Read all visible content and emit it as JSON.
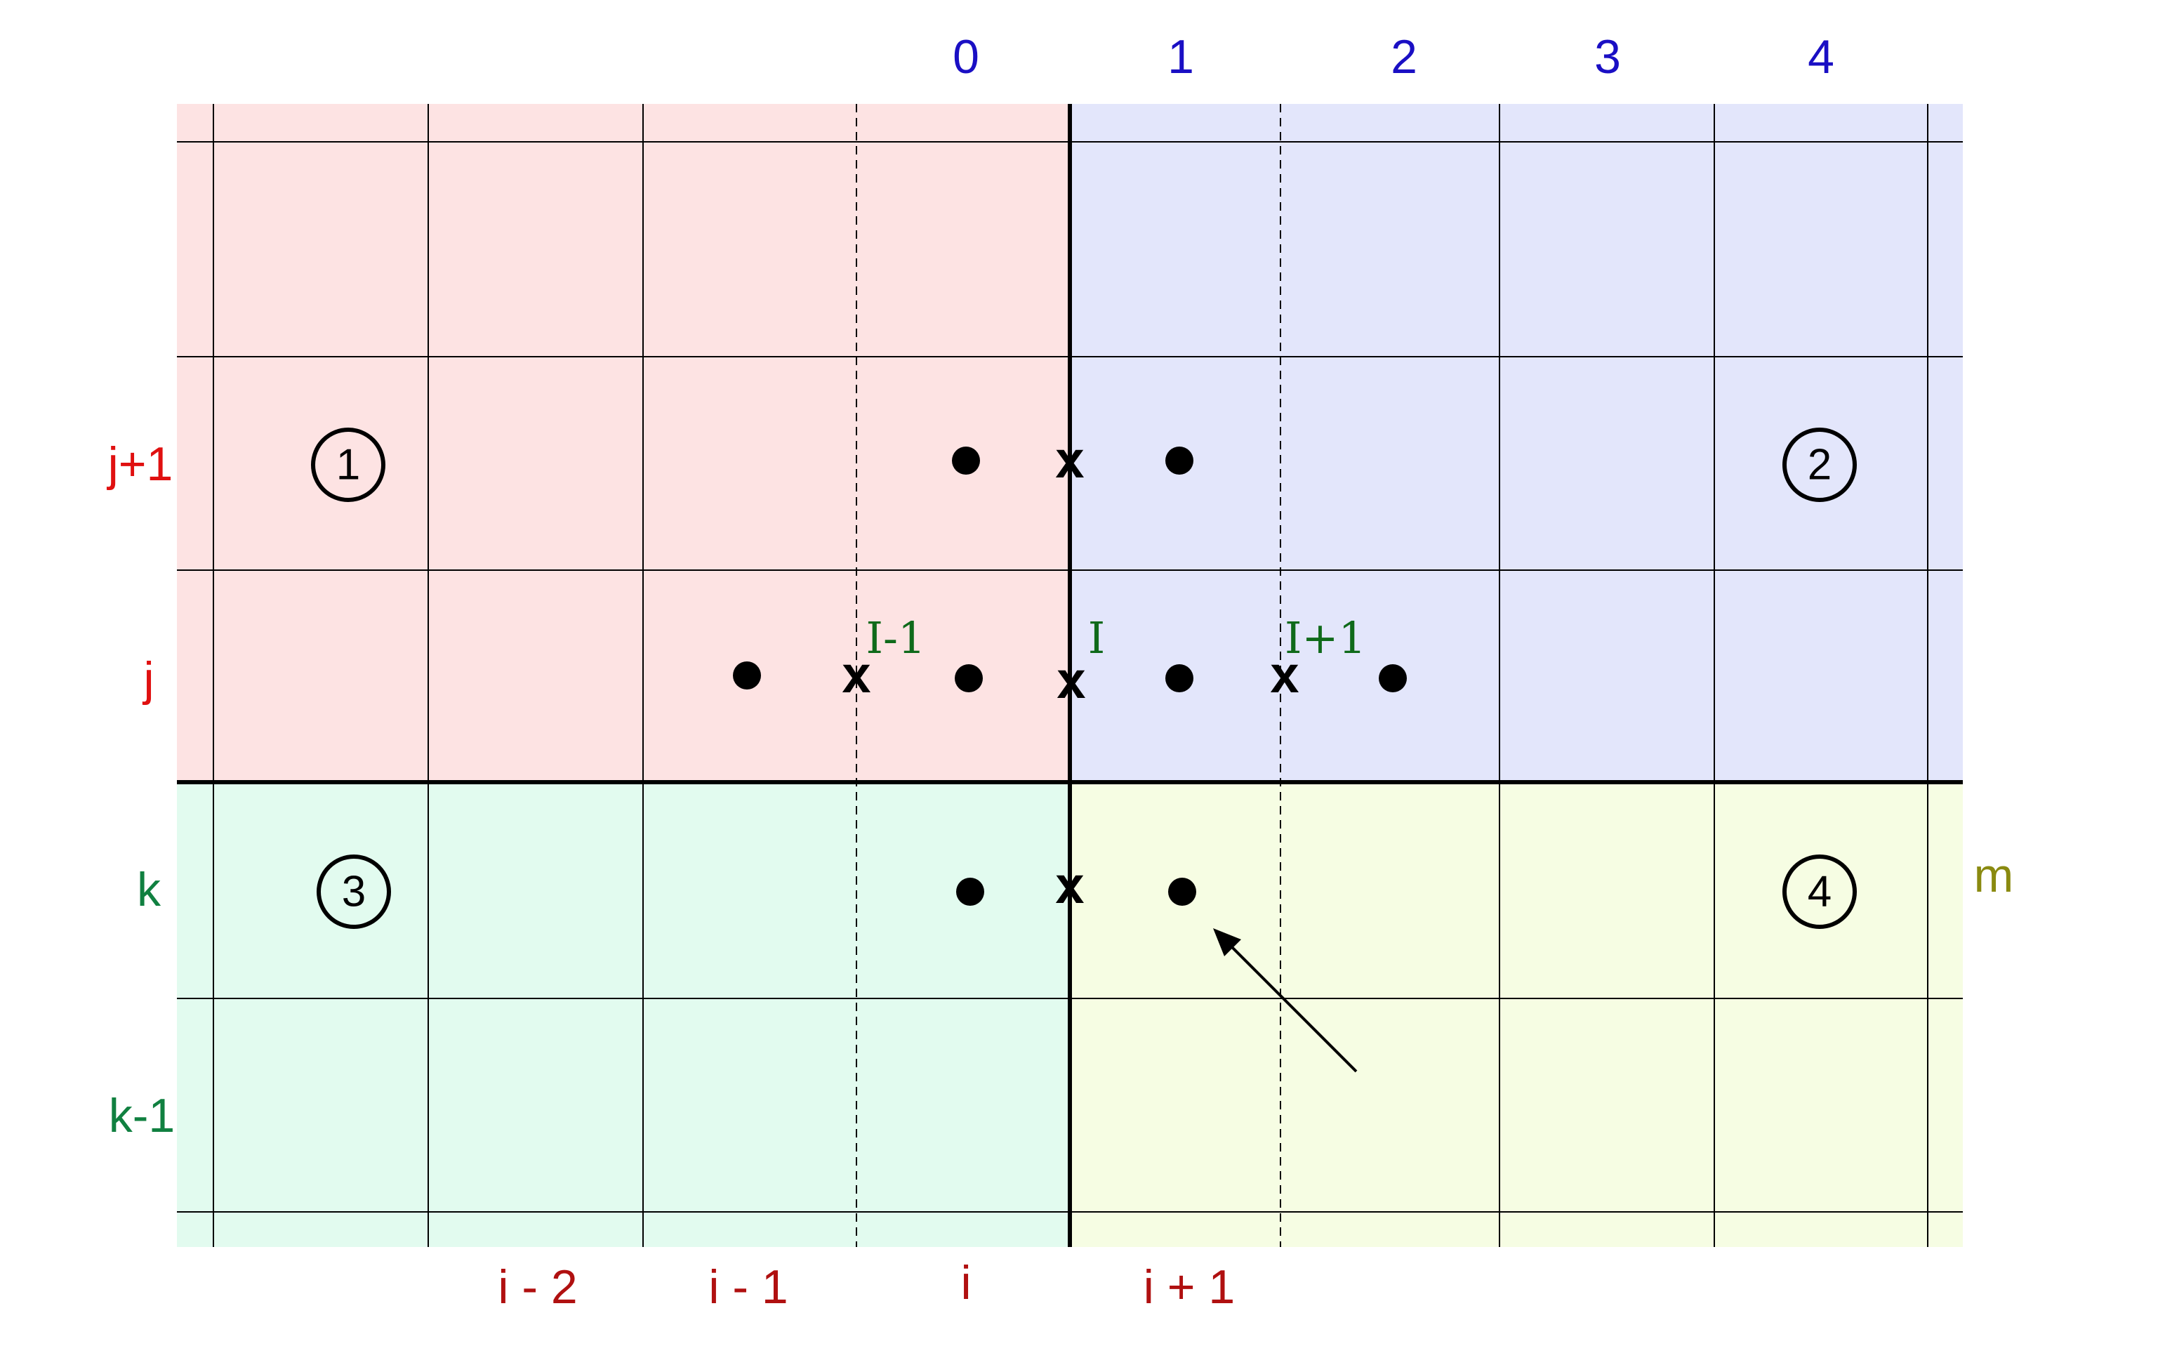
{
  "colors": {
    "region_1": "#fde3e3",
    "region_2": "#e3e6fb",
    "region_3": "#e2fbef",
    "region_4": "#f6fde3",
    "column_numbers": "#1a0fc4",
    "row_label_j": "#e01010",
    "row_label_k": "#108040",
    "bottom_labels": "#b01010",
    "interface_labels": "#0f6a1a",
    "m_label": "#8a8a10",
    "grid": "#000000"
  },
  "top_column_labels": [
    "0",
    "1",
    "2",
    "3",
    "4"
  ],
  "left_row_labels": [
    {
      "text": "j+1",
      "group": "j"
    },
    {
      "text": "j",
      "group": "j"
    },
    {
      "text": "k",
      "group": "k"
    },
    {
      "text": "k-1",
      "group": "k"
    }
  ],
  "bottom_index_labels": [
    "i - 2",
    "i - 1",
    "i",
    "i + 1"
  ],
  "interface_labels": [
    "I-1",
    "I",
    "I+1"
  ],
  "region_markers": [
    "1",
    "2",
    "3",
    "4"
  ],
  "side_label": "m",
  "markers": {
    "dot": "●",
    "cross": "x"
  }
}
